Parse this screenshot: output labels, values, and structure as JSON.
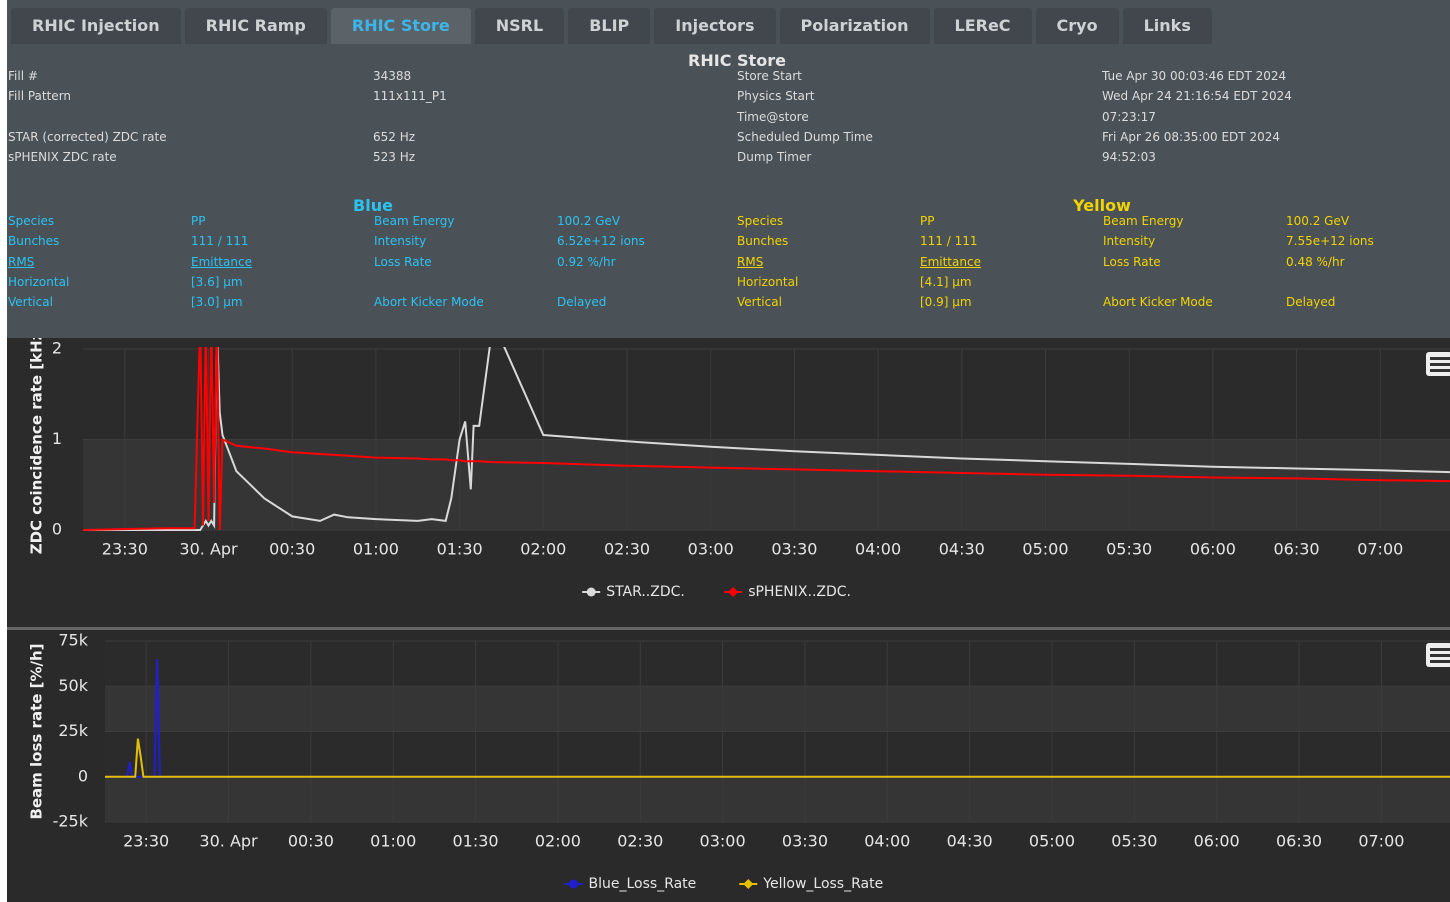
{
  "tabs": [
    "RHIC Injection",
    "RHIC Ramp",
    "RHIC Store",
    "NSRL",
    "BLIP",
    "Injectors",
    "Polarization",
    "LEReC",
    "Cryo",
    "Links"
  ],
  "active_tab": 2,
  "store": {
    "title": "RHIC Store",
    "left": [
      [
        "Fill #",
        "34388"
      ],
      [
        "Fill Pattern",
        "111x111_P1"
      ],
      [
        "STAR (corrected) ZDC rate",
        "652 Hz"
      ],
      [
        "sPHENIX ZDC rate",
        "523 Hz"
      ]
    ],
    "right": [
      [
        "Store Start",
        "Tue Apr 30 00:03:46 EDT 2024"
      ],
      [
        "Physics Start",
        "Wed Apr 24 21:16:54 EDT 2024"
      ],
      [
        "Time@store",
        "07:23:17"
      ],
      [
        "Scheduled Dump Time",
        "Fri Apr 26 08:35:00 EDT 2024"
      ],
      [
        "Dump Timer",
        "94:52:03"
      ]
    ]
  },
  "blue": {
    "title": "Blue",
    "left": [
      [
        "Species",
        "PP"
      ],
      [
        "Bunches",
        "111 / 111"
      ],
      [
        "RMS",
        "Emittance"
      ],
      [
        "Horizontal",
        "[3.6] µm"
      ],
      [
        "Vertical",
        "[3.0] µm"
      ]
    ],
    "right": [
      [
        "Beam Energy",
        "100.2 GeV"
      ],
      [
        "Intensity",
        "6.52e+12 ions"
      ],
      [
        "Loss Rate",
        "0.92 %/hr"
      ],
      [
        "Abort Kicker Mode",
        "Delayed"
      ]
    ]
  },
  "yellow": {
    "title": "Yellow",
    "left": [
      [
        "Species",
        "PP"
      ],
      [
        "Bunches",
        "111 / 111"
      ],
      [
        "RMS",
        "Emittance"
      ],
      [
        "Horizontal",
        "[4.1] µm"
      ],
      [
        "Vertical",
        "[0.9] µm"
      ]
    ],
    "right": [
      [
        "Beam Energy",
        "100.2 GeV"
      ],
      [
        "Intensity",
        "7.55e+12 ions"
      ],
      [
        "Loss Rate",
        "0.48 %/hr"
      ],
      [
        "Abort Kicker Mode",
        "Delayed"
      ]
    ]
  },
  "chart_data": [
    {
      "type": "line",
      "y_label": "ZDC coincidence rate [kHz]",
      "x": [
        "23:15",
        "23:45",
        "23:55",
        "23:57",
        "23:58",
        "23:59",
        "00:00",
        "00:01",
        "00:02",
        "00:03",
        "00:04",
        "00:05",
        "00:10",
        "00:20",
        "00:30",
        "00:40",
        "00:45",
        "00:50",
        "01:00",
        "01:15",
        "01:20",
        "01:25",
        "01:27",
        "01:30",
        "01:32",
        "01:34",
        "01:35",
        "01:37",
        "01:42",
        "02:00",
        "02:30",
        "03:00",
        "03:30",
        "04:00",
        "04:30",
        "05:00",
        "05:30",
        "06:00",
        "06:30",
        "07:00",
        "07:25"
      ],
      "series": [
        {
          "name": "STAR..ZDC.",
          "color": "#d9d9d9",
          "marker": "circle",
          "values": [
            0,
            0,
            0,
            0,
            0.05,
            0.1,
            0.05,
            0.1,
            0.05,
            2.3,
            1.3,
            1.05,
            0.65,
            0.35,
            0.15,
            0.1,
            0.17,
            0.14,
            0.12,
            0.1,
            0.12,
            0.1,
            0.35,
            1.0,
            1.2,
            0.45,
            1.15,
            1.15,
            2.3,
            1.05,
            0.98,
            0.92,
            0.87,
            0.83,
            0.79,
            0.76,
            0.73,
            0.7,
            0.68,
            0.66,
            0.64
          ]
        },
        {
          "name": "sPHENIX..ZDC.",
          "color": "#ff0000",
          "marker": "diamond",
          "values": [
            0,
            0.02,
            0.02,
            2.3,
            0.05,
            2.3,
            0.1,
            2.3,
            0.3,
            2.3,
            0,
            1.0,
            0.93,
            0.9,
            0.86,
            0.84,
            0.83,
            0.82,
            0.8,
            0.79,
            0.78,
            0.78,
            0.77,
            0.77,
            0.76,
            0.76,
            0.76,
            0.76,
            0.75,
            0.74,
            0.71,
            0.69,
            0.67,
            0.65,
            0.63,
            0.61,
            0.6,
            0.58,
            0.57,
            0.55,
            0.54
          ]
        }
      ],
      "xlim": [
        "23:15",
        "07:25"
      ],
      "xticks": [
        "23:30",
        {
          "value": "00:00",
          "label": "30. Apr"
        },
        "00:30",
        "01:00",
        "01:30",
        "02:00",
        "02:30",
        "03:00",
        "03:30",
        "04:00",
        "04:30",
        "05:00",
        "05:30",
        "06:00",
        "06:30",
        "07:00"
      ],
      "ylim": [
        0,
        2
      ],
      "yticks": [
        0,
        1,
        2
      ],
      "grid": true,
      "legend": "bottom"
    },
    {
      "type": "line",
      "y_label": "Beam loss rate [%/h]",
      "x": [
        "23:15",
        "23:23",
        "23:24",
        "23:25",
        "23:26",
        "23:27",
        "23:28",
        "23:29",
        "23:33",
        "23:34",
        "23:35",
        "07:25"
      ],
      "series": [
        {
          "name": "Blue_Loss_Rate",
          "color": "#1f1fd0",
          "marker": "circle",
          "values": [
            0,
            0,
            8000,
            0,
            0,
            0,
            0,
            0,
            0,
            65000,
            0,
            0
          ]
        },
        {
          "name": "Yellow_Loss_Rate",
          "color": "#e6c000",
          "marker": "diamond",
          "values": [
            0,
            0,
            0,
            0,
            0,
            21000,
            11000,
            0,
            0,
            0,
            0,
            0
          ]
        }
      ],
      "xlim": [
        "23:15",
        "07:25"
      ],
      "xticks": [
        "23:30",
        {
          "value": "00:00",
          "label": "30. Apr"
        },
        "00:30",
        "01:00",
        "01:30",
        "02:00",
        "02:30",
        "03:00",
        "03:30",
        "04:00",
        "04:30",
        "05:00",
        "05:30",
        "06:00",
        "06:30",
        "07:00"
      ],
      "ylim": [
        -25000,
        75000
      ],
      "yticks": [
        {
          "value": -25000,
          "label": "-25k"
        },
        0,
        {
          "value": 25000,
          "label": "25k"
        },
        {
          "value": 50000,
          "label": "50k"
        },
        {
          "value": 75000,
          "label": "75k"
        }
      ],
      "grid": true,
      "legend": "bottom"
    }
  ]
}
